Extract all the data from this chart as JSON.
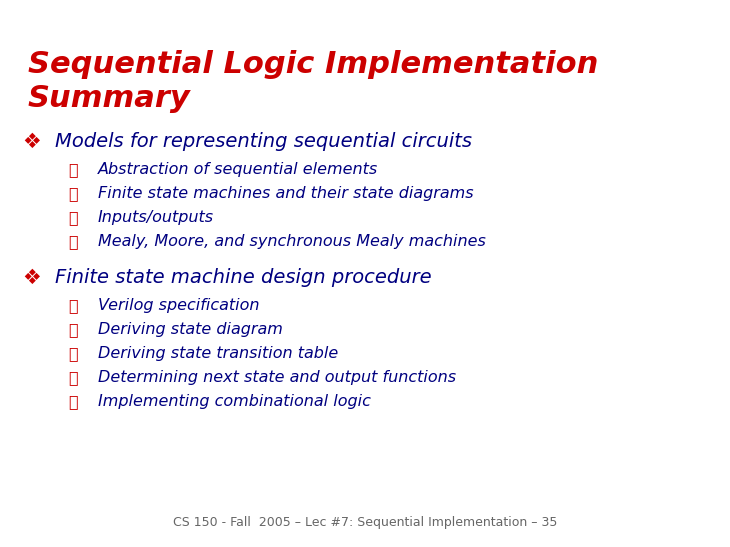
{
  "background_color": "#ffffff",
  "title_line1": "Sequential Logic Implementation",
  "title_line2": "Summary",
  "title_color": "#cc0000",
  "title_fontsize": 22,
  "main_bullet_char": "⌘",
  "sub_bullet_char": "☐",
  "main_color": "#000080",
  "accent_color": "#cc0000",
  "main_fontsize": 14,
  "sub_fontsize": 11.5,
  "footer_text": "CS 150 - Fall  2005 – Lec #7: Sequential Implementation – 35",
  "footer_color": "#666666",
  "footer_fontsize": 9,
  "main_bullets": [
    {
      "text": "Models for representing sequential circuits",
      "sub": [
        "Abstraction of sequential elements",
        "Finite state machines and their state diagrams",
        "Inputs/outputs",
        "Mealy, Moore, and synchronous Mealy machines"
      ]
    },
    {
      "text": "Finite state machine design procedure",
      "sub": [
        "Verilog specification",
        "Deriving state diagram",
        "Deriving state transition table",
        "Determining next state and output functions",
        "Implementing combinational logic"
      ]
    }
  ]
}
